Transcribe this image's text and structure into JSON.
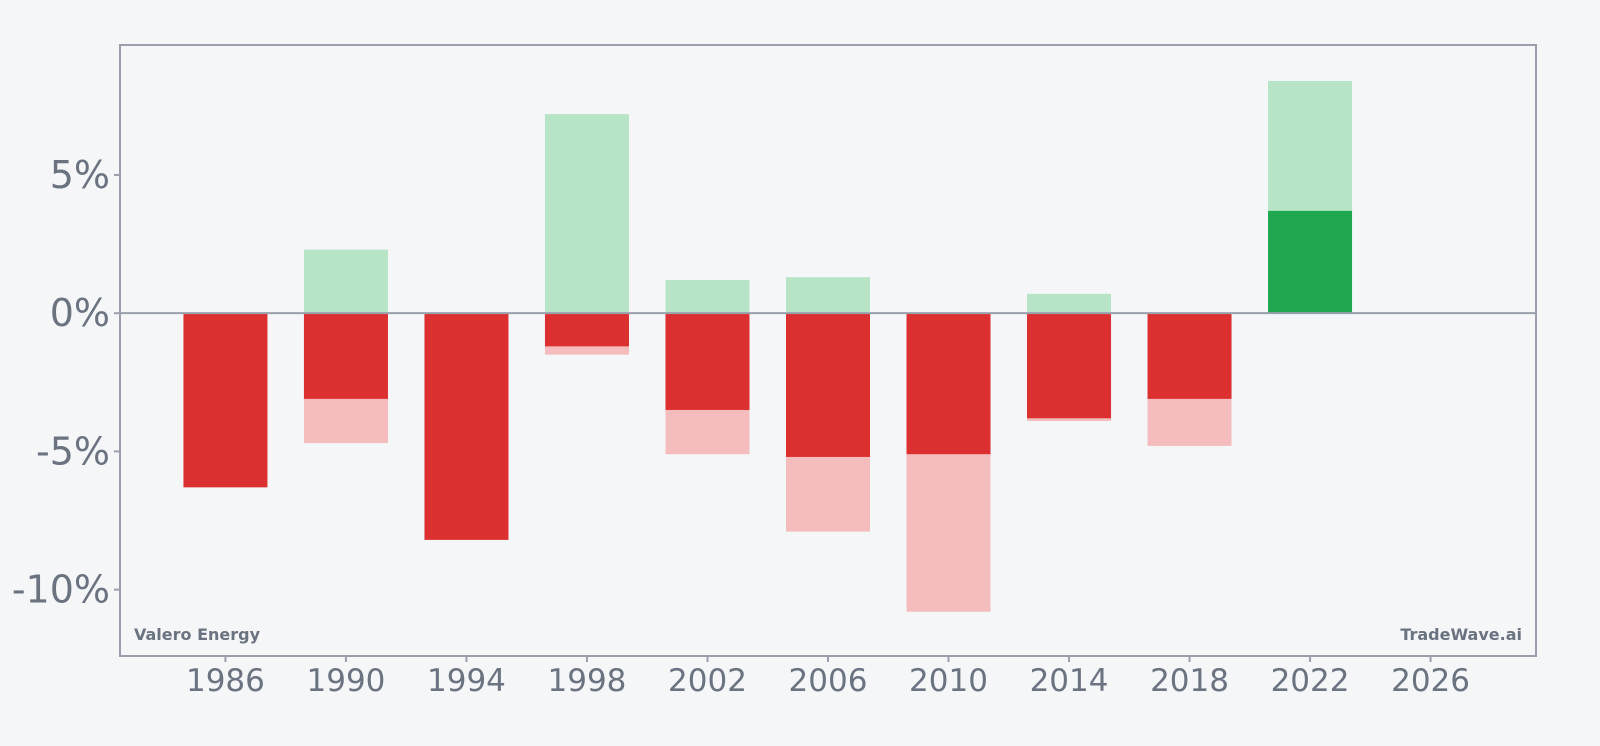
{
  "chart_data": {
    "type": "bar",
    "x": [
      1986,
      1990,
      1994,
      1998,
      2002,
      2006,
      2010,
      2014,
      2018,
      2022
    ],
    "series": [
      {
        "role": "light",
        "values": [
          null,
          2.3,
          null,
          7.2,
          1.2,
          1.3,
          null,
          0.7,
          null,
          8.4
        ]
      },
      {
        "role": "light-negative",
        "values": [
          null,
          -4.7,
          null,
          -1.5,
          -5.1,
          -7.9,
          -10.8,
          -3.9,
          -4.8,
          null
        ]
      },
      {
        "role": "solid",
        "values": [
          -6.3,
          -3.1,
          -8.2,
          -1.2,
          -3.5,
          -5.2,
          -5.1,
          -3.8,
          -3.1,
          3.7
        ]
      }
    ],
    "xlim": [
      1982.5,
      1929.5
    ],
    "x_ticks": [
      "1986",
      "1990",
      "1994",
      "1998",
      "2002",
      "2006",
      "2010",
      "2014",
      "2018",
      "2022",
      "2026"
    ],
    "ylim": [
      -12.4,
      9.7
    ],
    "y_ticks": [
      "5%",
      "0%",
      "-5%",
      "-10%"
    ],
    "y_tick_values": [
      5,
      0,
      -5,
      -10
    ],
    "colors": {
      "positive": "#1fa84f",
      "positive_light": "#b7e4c7",
      "negative": "#dc2f2f",
      "negative_light": "#f4bcbc",
      "axis": "#9aa0ab",
      "text": "#6b7280",
      "background": "#f4f6f8"
    },
    "grid": false,
    "legend": "none"
  },
  "watermark_left": "Valero Energy",
  "watermark_right": "TradeWave.ai"
}
